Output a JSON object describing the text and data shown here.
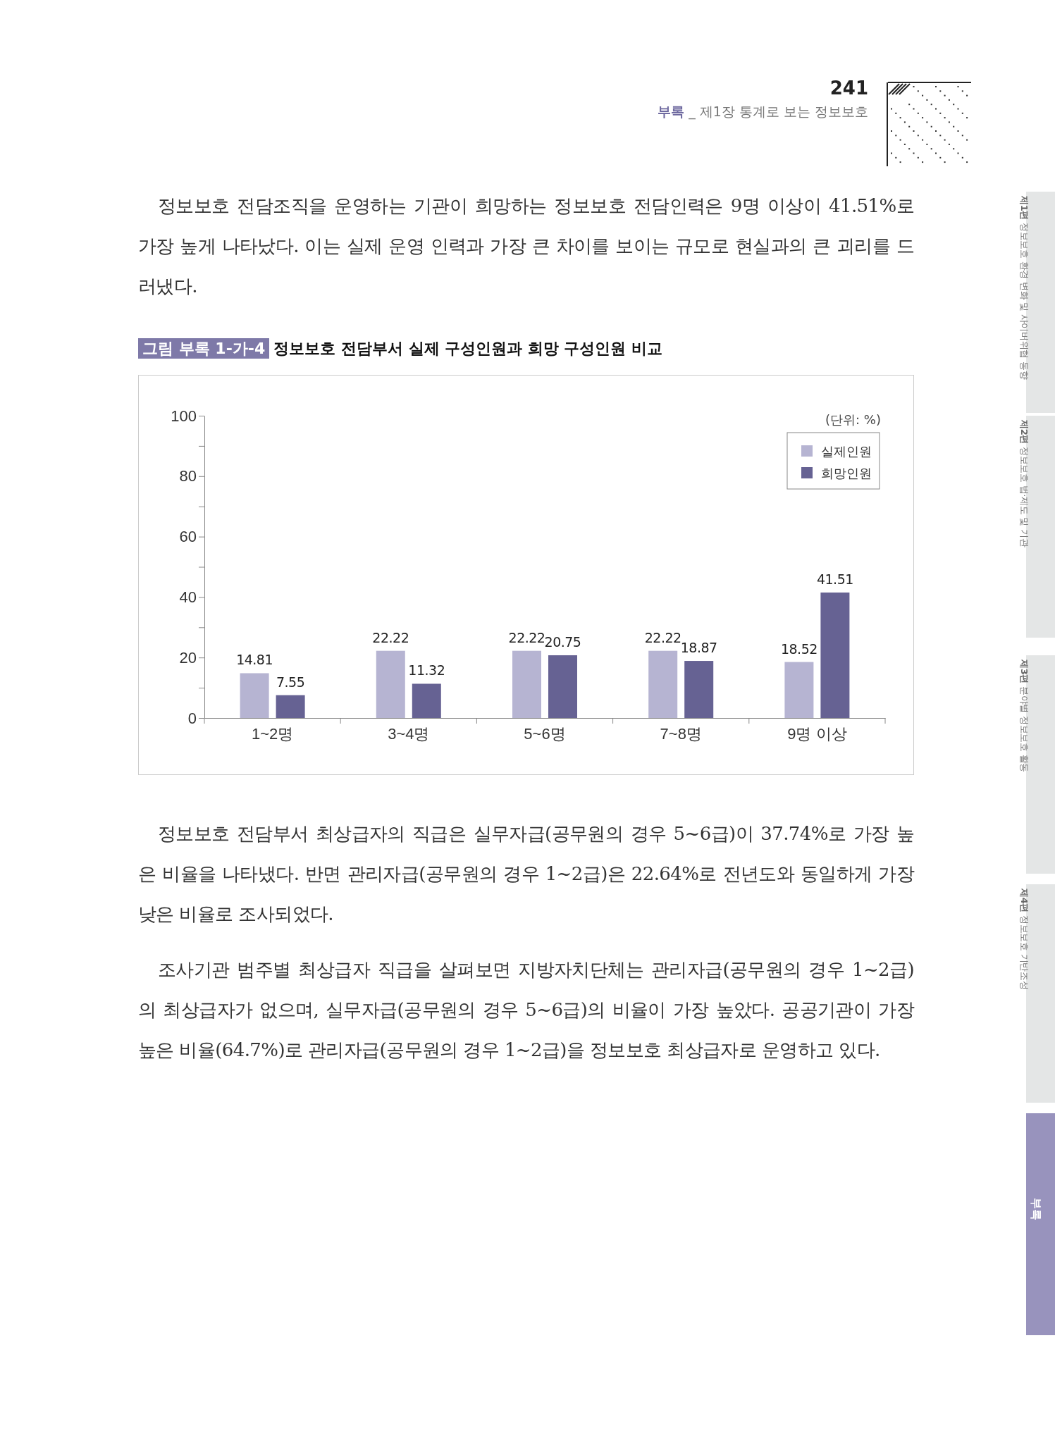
{
  "chart_data": {
    "type": "bar",
    "title": "정보보호 전담부서 실제 구성인원과 희망 구성인원 비교",
    "categories": [
      "1~2명",
      "3~4명",
      "5~6명",
      "7~8명",
      "9명 이상"
    ],
    "series": [
      {
        "name": "실제인원",
        "color": "#b6b4d2",
        "values": [
          14.81,
          22.22,
          22.22,
          22.22,
          18.52
        ]
      },
      {
        "name": "희망인원",
        "color": "#666293",
        "values": [
          7.55,
          11.32,
          20.75,
          18.87,
          41.51
        ]
      }
    ],
    "ylim": [
      0,
      100
    ],
    "yticks": [
      0,
      {
        "value": 10,
        "label": null
      },
      20,
      {
        "value": 30,
        "label": null
      },
      40,
      {
        "value": 50,
        "label": null
      },
      60,
      {
        "value": 70,
        "label": null
      },
      80,
      {
        "value": 90,
        "label": null
      },
      100
    ],
    "data_labels": true,
    "legend": "top right",
    "grid": false,
    "annotations": [
      "241",
      "부록 _ 제1장 통계로 보는 정보보호",
      "정보보호 전담조직을 운영하는 기관이 희망하는 정보보호 전담인력은 9명 이상이 41.51%로 가장 높게 나타났다. 이는 실제 운영 인력과 가장 큰 차이를 보이는 규모로 현실과의 큰 괴리를 드러냈다.",
      "그림 부록 1-가-4",
      "(단위: %)",
      "정보보호 전담부서 최상급자의 직급은 실무자급(공무원의 경우 5~6급)이 37.74%로 가장 높은 비율을 나타냈다. 반면 관리자급(공무원의 경우 1~2급)은 22.64%로 전년도와 동일하게 가장 낮은 비율로 조사되었다.",
      "조사기관 범주별 최상급자 직급을 살펴보면 지방자치단체는 관리자급(공무원의 경우 1~2급)의 최상급자가 없으며, 실무자급(공무원의 경우 5~6급)의 비율이 가장 높았다. 공공기관이 가장 높은 비율(64.7%)로 관리자급(공무원의 경우 1~2급)을 정보보호 최상급자로 운영하고 있다.",
      "제1편 정보보호 환경 변화 및 사이버위협 동향",
      "제2편 정보보호 법·제도 및 기관",
      "제3편 분야별 정보보호 활동",
      "제4편 정보보호 기반조성",
      "부록"
    ]
  }
}
